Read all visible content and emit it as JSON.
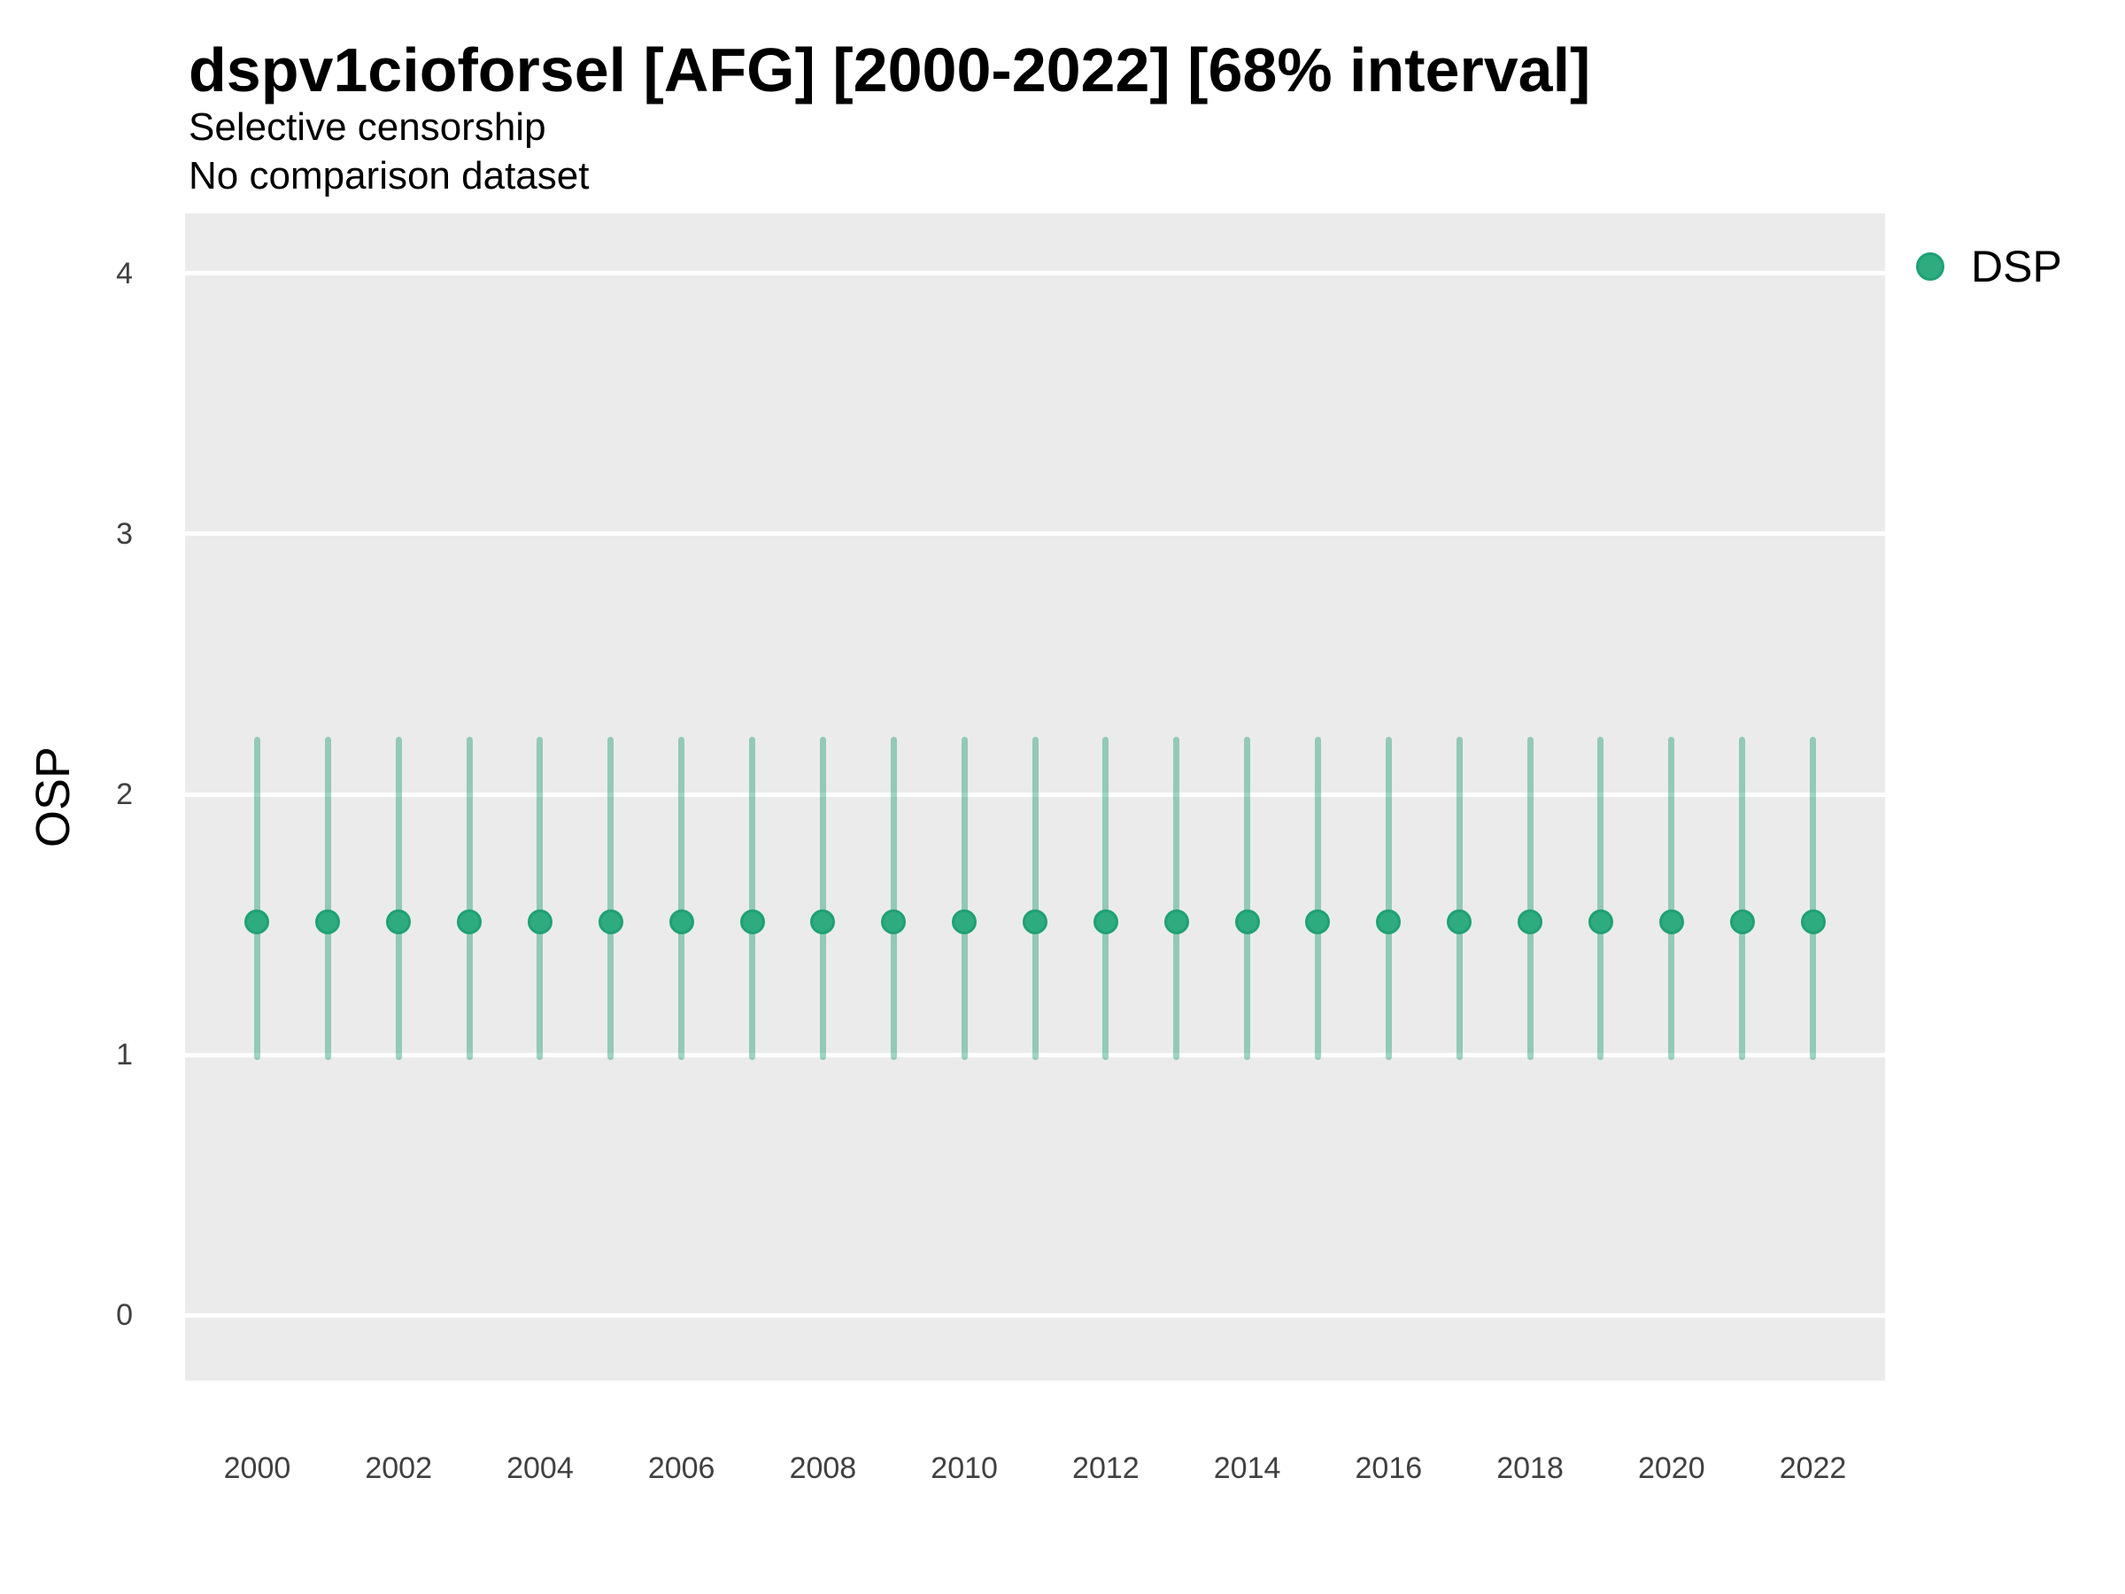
{
  "header": {
    "title": "dspv1cioforsel [AFG] [2000-2022] [68% interval]",
    "subtitle1": "Selective censorship",
    "subtitle2": "No comparison dataset"
  },
  "legend": {
    "items": [
      {
        "label": "DSP",
        "color": "#2eab7f"
      }
    ]
  },
  "colors": {
    "panel_bg": "#ebebeb",
    "grid": "#ffffff",
    "point_fill": "#2eab7f",
    "point_stroke": "#1fa173",
    "interval_line": "rgba(25,156,112,0.42)",
    "title_text": "#000000",
    "tick_text": "#404040"
  },
  "chart_data": {
    "type": "pointrange",
    "title": "dspv1cioforsel [AFG] [2000-2022] [68% interval]",
    "subtitle": [
      "Selective censorship",
      "No comparison dataset"
    ],
    "xlabel": "",
    "ylabel": "OSP",
    "legend_position": "right",
    "grid": "major-horizontal-only",
    "x": [
      2000,
      2001,
      2002,
      2003,
      2004,
      2005,
      2006,
      2007,
      2008,
      2009,
      2010,
      2011,
      2012,
      2013,
      2014,
      2015,
      2016,
      2017,
      2018,
      2019,
      2020,
      2021,
      2022
    ],
    "series": [
      {
        "name": "DSP",
        "mid": [
          1.51,
          1.51,
          1.51,
          1.51,
          1.51,
          1.51,
          1.51,
          1.51,
          1.51,
          1.51,
          1.51,
          1.51,
          1.51,
          1.51,
          1.51,
          1.51,
          1.51,
          1.51,
          1.51,
          1.51,
          1.51,
          1.51,
          1.51
        ],
        "lo": [
          0.98,
          0.98,
          0.98,
          0.98,
          0.98,
          0.98,
          0.98,
          0.98,
          0.98,
          0.98,
          0.98,
          0.98,
          0.98,
          0.98,
          0.98,
          0.98,
          0.98,
          0.98,
          0.98,
          0.98,
          0.98,
          0.98,
          0.98
        ],
        "hi": [
          2.22,
          2.22,
          2.22,
          2.22,
          2.22,
          2.22,
          2.22,
          2.22,
          2.22,
          2.22,
          2.22,
          2.22,
          2.22,
          2.22,
          2.22,
          2.22,
          2.22,
          2.22,
          2.22,
          2.22,
          2.22,
          2.22,
          2.22
        ]
      }
    ],
    "ylim": [
      -0.25,
      4.23
    ],
    "xlim": [
      1998.98,
      2023.02
    ],
    "yticks": [
      0,
      1,
      2,
      3,
      4
    ],
    "xticks": [
      2000,
      2002,
      2004,
      2006,
      2008,
      2010,
      2012,
      2014,
      2016,
      2018,
      2020,
      2022
    ]
  }
}
